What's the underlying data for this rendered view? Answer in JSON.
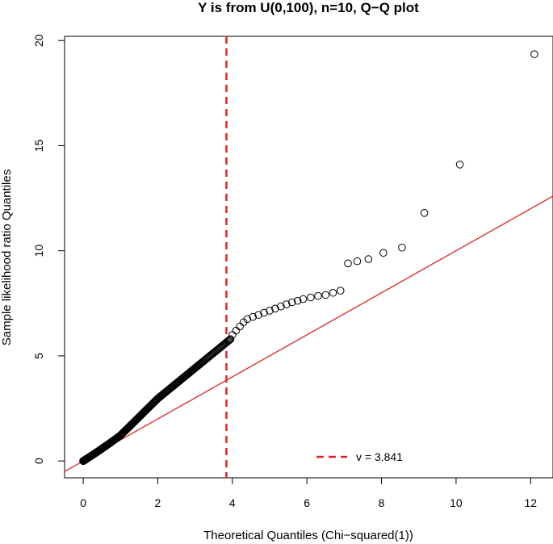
{
  "chart_data": {
    "type": "scatter",
    "title": "Y is from U(0,100), n=10, Q−Q plot",
    "xlabel": "Theoretical Quantiles (Chi−squared(1))",
    "ylabel": "Sample likelihood ratio Quantiles",
    "xlim": [
      -0.5,
      12.6
    ],
    "ylim": [
      -0.8,
      20.2
    ],
    "xticks": [
      0,
      2,
      4,
      6,
      8,
      10,
      12
    ],
    "yticks": [
      0,
      5,
      10,
      15,
      20
    ],
    "reference_line": {
      "intercept": 0,
      "slope": 1,
      "color": "#d62728"
    },
    "vline": {
      "x": 3.841,
      "color": "#d62728",
      "style": "dashed"
    },
    "legend": {
      "label": "v = 3.841",
      "position": "bottom-right"
    },
    "points_color": "#000000",
    "upper_points": [
      [
        4.0,
        6.0
      ],
      [
        4.1,
        6.2
      ],
      [
        4.2,
        6.4
      ],
      [
        4.3,
        6.6
      ],
      [
        4.4,
        6.75
      ],
      [
        4.55,
        6.85
      ],
      [
        4.7,
        6.95
      ],
      [
        4.85,
        7.05
      ],
      [
        5.0,
        7.15
      ],
      [
        5.15,
        7.25
      ],
      [
        5.3,
        7.35
      ],
      [
        5.45,
        7.45
      ],
      [
        5.6,
        7.55
      ],
      [
        5.75,
        7.62
      ],
      [
        5.9,
        7.7
      ],
      [
        6.1,
        7.78
      ],
      [
        6.3,
        7.85
      ],
      [
        6.5,
        7.9
      ],
      [
        6.7,
        8.0
      ],
      [
        6.9,
        8.1
      ],
      [
        7.1,
        9.4
      ],
      [
        7.35,
        9.5
      ],
      [
        7.65,
        9.6
      ],
      [
        8.05,
        9.9
      ],
      [
        8.55,
        10.15
      ],
      [
        9.15,
        11.8
      ],
      [
        10.1,
        14.1
      ],
      [
        12.1,
        19.35
      ]
    ]
  }
}
